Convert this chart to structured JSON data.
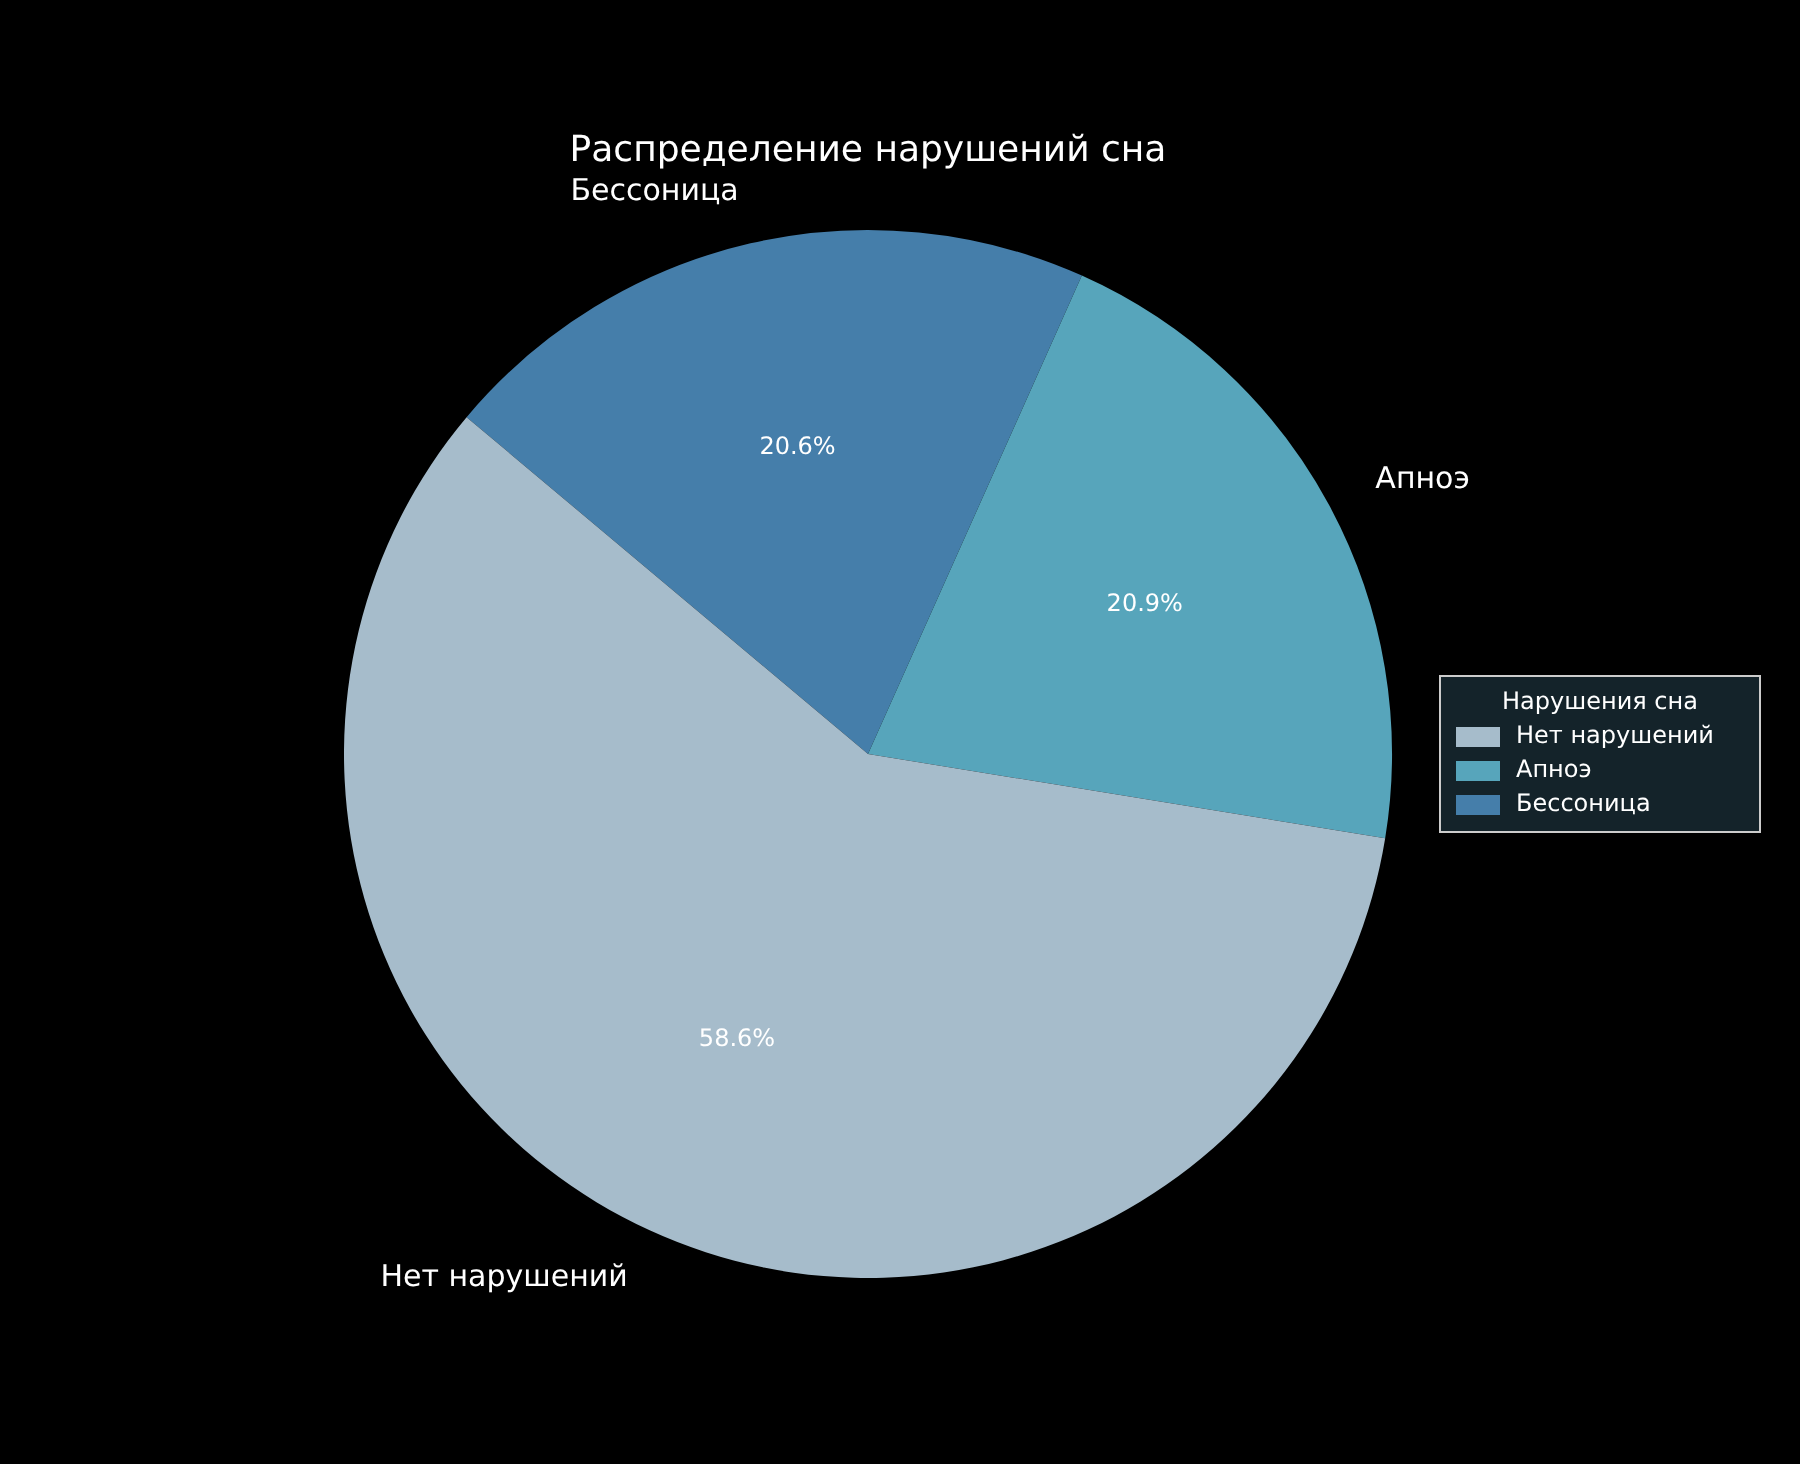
{
  "chart_data": {
    "type": "pie",
    "title": "Распределение нарушений сна",
    "legend_title": "Нарушения сна",
    "legend": "right",
    "categories": [
      "Нет нарушений",
      "Апноэ",
      "Бессоница"
    ],
    "values": [
      58.6,
      20.9,
      20.6
    ],
    "value_labels": [
      "58.6%",
      "20.9%",
      "20.6%"
    ],
    "colors": [
      "#a6bccb",
      "#57a5bb",
      "#457eaa"
    ]
  }
}
